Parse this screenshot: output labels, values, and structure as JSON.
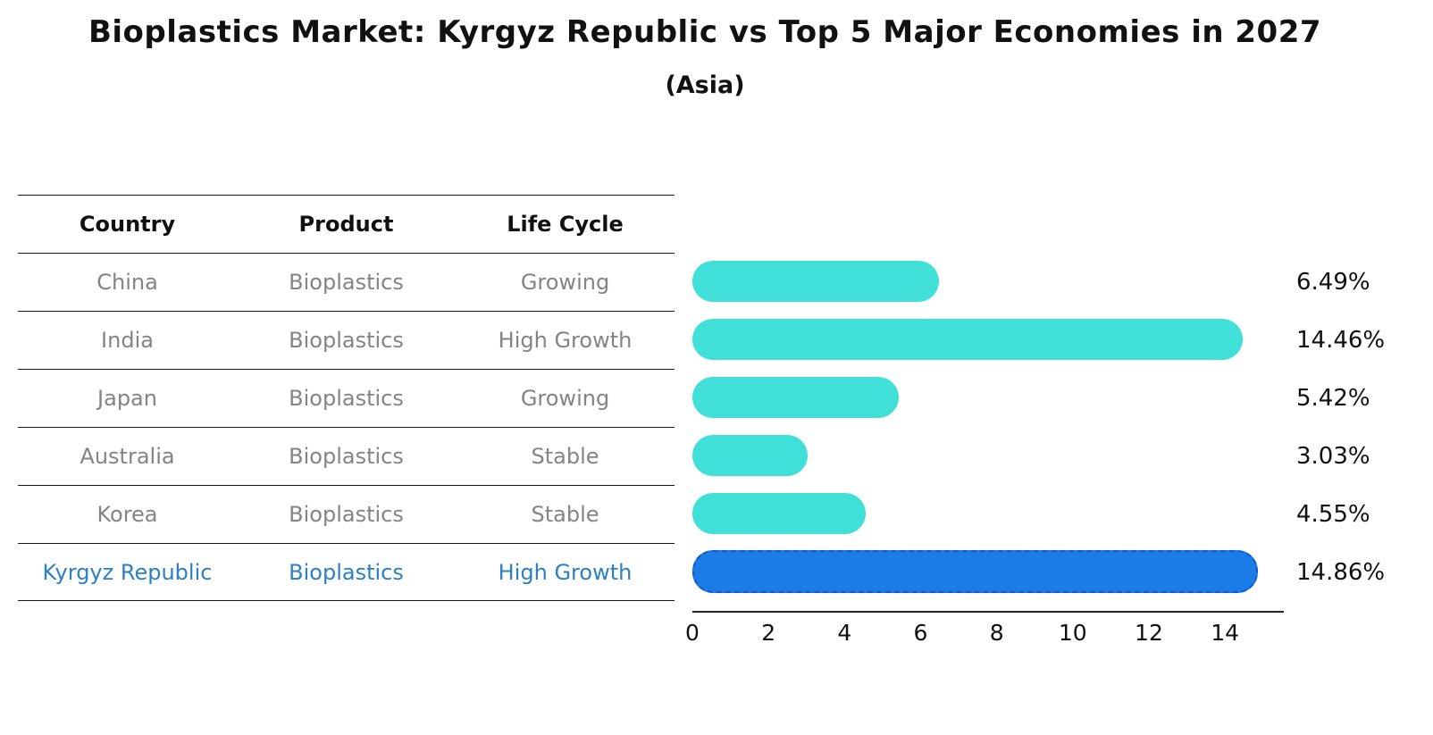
{
  "title": "Bioplastics Market: Kyrgyz Republic vs Top 5 Major Economies in 2027",
  "subtitle": "(Asia)",
  "table": {
    "headers": [
      "Country",
      "Product",
      "Life Cycle"
    ],
    "rows": [
      {
        "country": "China",
        "product": "Bioplastics",
        "life_cycle": "Growing"
      },
      {
        "country": "India",
        "product": "Bioplastics",
        "life_cycle": "High Growth"
      },
      {
        "country": "Japan",
        "product": "Bioplastics",
        "life_cycle": "Growing"
      },
      {
        "country": "Australia",
        "product": "Bioplastics",
        "life_cycle": "Stable"
      },
      {
        "country": "Korea",
        "product": "Bioplastics",
        "life_cycle": "Stable"
      },
      {
        "country": "Kyrgyz Republic",
        "product": "Bioplastics",
        "life_cycle": "High Growth"
      }
    ]
  },
  "chart_data": {
    "type": "bar",
    "orientation": "horizontal",
    "title": "Bioplastics Market: Kyrgyz Republic vs Top 5 Major Economies in 2027",
    "subtitle": "(Asia)",
    "categories": [
      "China",
      "India",
      "Japan",
      "Australia",
      "Korea",
      "Kyrgyz Republic"
    ],
    "values": [
      6.49,
      14.46,
      5.42,
      3.03,
      4.55,
      14.86
    ],
    "value_labels": [
      "6.49%",
      "14.46%",
      "5.42%",
      "3.03%",
      "4.55%",
      "14.86%"
    ],
    "xlim": [
      0,
      15.5
    ],
    "xticks": [
      0,
      2,
      4,
      6,
      8,
      10,
      12,
      14
    ],
    "grid": false,
    "legend": "none",
    "bar_color": "#40e0d9",
    "highlight_color": "#1b7ce8",
    "highlight_index": 5,
    "highlight_text_color": "#2b7fc4"
  }
}
